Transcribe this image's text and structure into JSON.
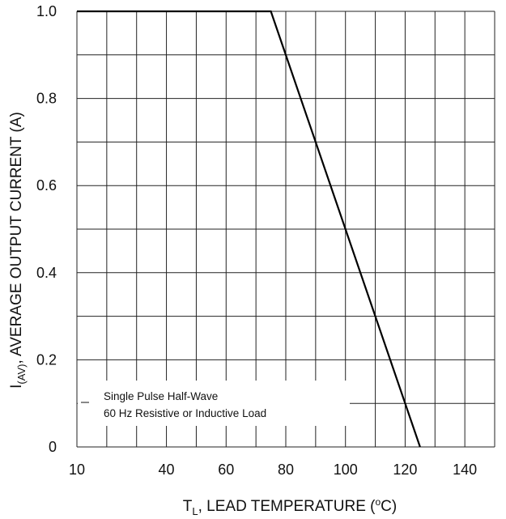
{
  "chart_data": {
    "type": "line",
    "xlabel": {
      "main": "T",
      "sub": "L",
      "rest": ", LEAD TEMPERATURE (",
      "sup": "o",
      "end": "C)"
    },
    "ylabel": {
      "main": "I",
      "sub": "(AV)",
      "rest": ", AVERAGE OUTPUT CURRENT (A)"
    },
    "x_ticks": [
      {
        "value": 10,
        "label": "10"
      },
      {
        "value": 40,
        "label": "40"
      },
      {
        "value": 60,
        "label": "60"
      },
      {
        "value": 80,
        "label": "80"
      },
      {
        "value": 100,
        "label": "100"
      },
      {
        "value": 120,
        "label": "120"
      },
      {
        "value": 140,
        "label": "140"
      }
    ],
    "x_range": [
      10,
      150
    ],
    "x_grid_step": 10,
    "y_ticks": [
      {
        "value": 0,
        "label": "0"
      },
      {
        "value": 0.2,
        "label": "0.2"
      },
      {
        "value": 0.4,
        "label": "0.4"
      },
      {
        "value": 0.6,
        "label": "0.6"
      },
      {
        "value": 0.8,
        "label": "0.8"
      },
      {
        "value": 1.0,
        "label": "1.0"
      }
    ],
    "y_range": [
      0,
      1.0
    ],
    "y_grid_step": 0.1,
    "grid": true,
    "series": [
      {
        "x": [
          10,
          75,
          125
        ],
        "y": [
          1.0,
          1.0,
          0
        ]
      }
    ],
    "annotation": [
      "Single Pulse Half-Wave",
      "60 Hz Resistive or Inductive Load"
    ]
  }
}
